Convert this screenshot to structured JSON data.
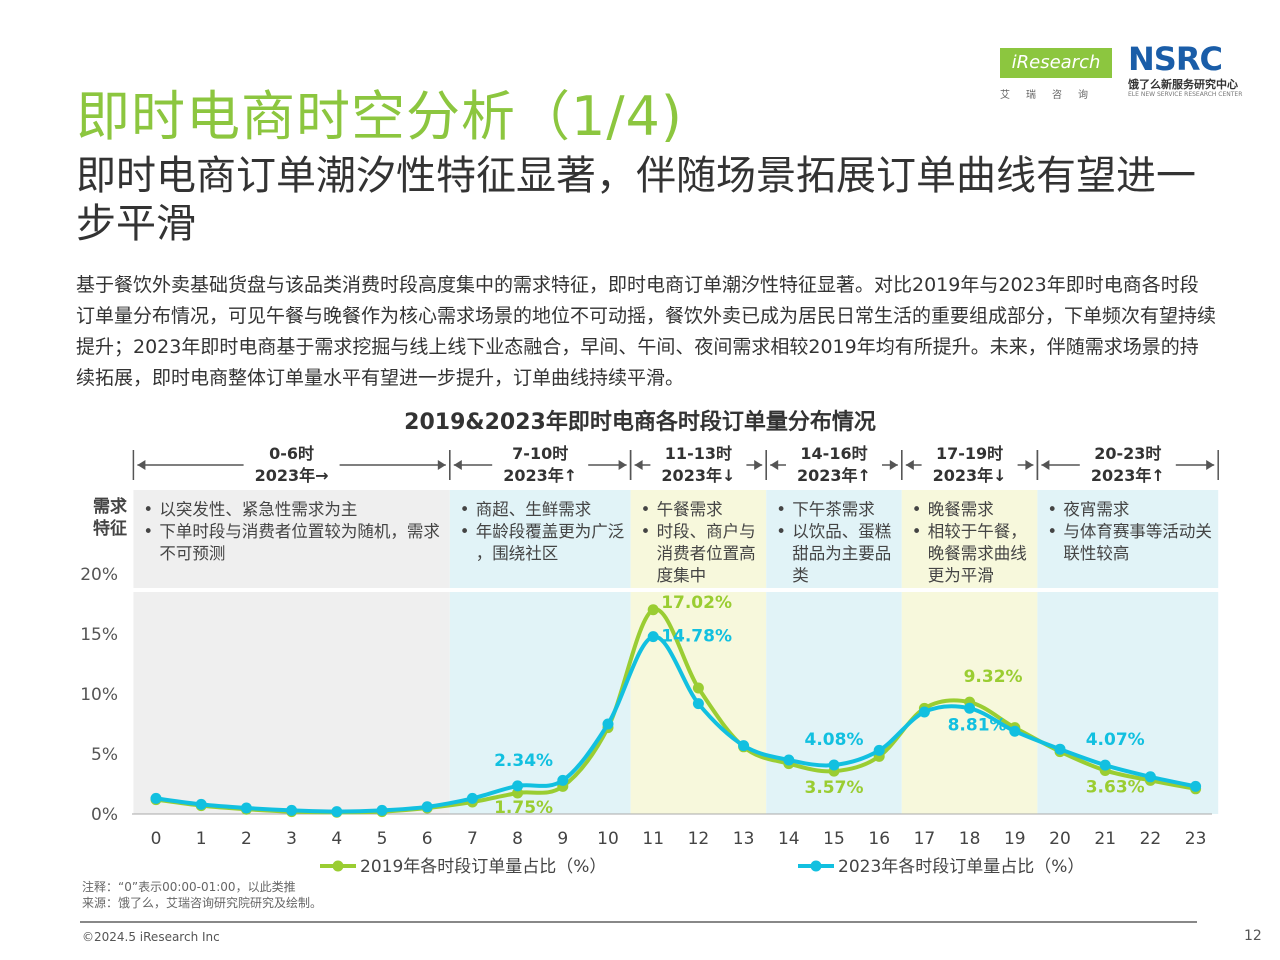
{
  "page": {
    "title": "即时电商时空分析（1/4)",
    "subtitle": "即时电商订单潮汐性特征显著，伴随场景拓展订单曲线有望进一步平滑",
    "paragraph": "基于餐饮外卖基础货盘与该品类消费时段高度集中的需求特征，即时电商订单潮汐性特征显著。对比2019年与2023年即时电商各时段订单量分布情况，可见午餐与晚餐作为核心需求场景的地位不可动摇，餐饮外卖已成为居民日常生活的重要组成部分，下单频次有望持续提升；2023年即时电商基于需求挖掘与线上线下业态融合，早间、午间、夜间需求相较2019年均有所提升。未来，伴随需求场景的持续拓展，即时电商整体订单量水平有望进一步提升，订单曲线持续平滑。",
    "footnote_1": "注释：“0”表示00:00-01:00，以此类推",
    "footnote_2": "来源：饿了么，艾瑞咨询研究院研究及绘制。",
    "copyright": "©2024.5 iResearch Inc",
    "page_number": "12"
  },
  "logos": {
    "iresearch": "iResearch",
    "iresearch_cn": "艾瑞咨询",
    "nsrc": "NSRC",
    "nsrc_cn": "饿了么新服务研究中心",
    "nsrc_en": "ELE NEW SERVICE RESEARCH CENTER"
  },
  "colors": {
    "green": "#9acd32",
    "blue": "#12c0e0",
    "title_green": "#8cc63f",
    "band_gray": "#efefef",
    "band_blue": "#e1f3f7",
    "band_yellow": "#f7f8dc"
  },
  "chart_data": {
    "type": "line",
    "title": "2019&2023年即时电商各时段订单量分布情况",
    "x": [
      0,
      1,
      2,
      3,
      4,
      5,
      6,
      7,
      8,
      9,
      10,
      11,
      12,
      13,
      14,
      15,
      16,
      17,
      18,
      19,
      20,
      21,
      22,
      23
    ],
    "ylim": [
      0,
      20
    ],
    "yticks": [
      "0%",
      "5%",
      "10%",
      "15%",
      "20%"
    ],
    "ytick_values": [
      0,
      5,
      10,
      15,
      20
    ],
    "row_label": "需求\n特征",
    "series": [
      {
        "name": "2019年各时段订单量占比（%）",
        "color": "#9acd32",
        "values": [
          1.2,
          0.7,
          0.4,
          0.2,
          0.15,
          0.2,
          0.5,
          1.0,
          1.75,
          2.3,
          7.2,
          17.02,
          10.5,
          5.6,
          4.2,
          3.57,
          4.8,
          8.8,
          9.32,
          7.2,
          5.2,
          3.63,
          2.8,
          2.1
        ]
      },
      {
        "name": "2023年各时段订单量占比（%）",
        "color": "#12c0e0",
        "values": [
          1.3,
          0.8,
          0.5,
          0.3,
          0.2,
          0.3,
          0.6,
          1.3,
          2.34,
          2.8,
          7.5,
          14.78,
          9.2,
          5.7,
          4.5,
          4.08,
          5.3,
          8.5,
          8.81,
          6.9,
          5.4,
          4.07,
          3.1,
          2.3
        ]
      }
    ],
    "data_labels": [
      {
        "text": "17.02%",
        "series": 0,
        "x": 11
      },
      {
        "text": "14.78%",
        "series": 1,
        "x": 11
      },
      {
        "text": "9.32%",
        "series": 0,
        "x": 18
      },
      {
        "text": "8.81%",
        "series": 1,
        "x": 18
      },
      {
        "text": "2.34%",
        "series": 1,
        "x": 8
      },
      {
        "text": "1.75%",
        "series": 0,
        "x": 8
      },
      {
        "text": "4.08%",
        "series": 1,
        "x": 15
      },
      {
        "text": "3.57%",
        "series": 0,
        "x": 15
      },
      {
        "text": "4.07%",
        "series": 1,
        "x": 21
      },
      {
        "text": "3.63%",
        "series": 0,
        "x": 21
      }
    ],
    "segments": [
      {
        "period": "0-6时",
        "trend": "2023年→",
        "color": "gray",
        "start": -0.5,
        "end": 6.5,
        "features": [
          "以突发性、紧急性需求为主",
          "下单时段与消费者位置较为随机，需求不可预测"
        ]
      },
      {
        "period": "7-10时",
        "trend": "2023年↑",
        "color": "blue",
        "start": 6.5,
        "end": 10.5,
        "features": [
          "商超、生鲜需求",
          "年龄段覆盖更为广泛，围绕社区"
        ]
      },
      {
        "period": "11-13时",
        "trend": "2023年↓",
        "color": "yellow",
        "start": 10.5,
        "end": 13.5,
        "features": [
          "午餐需求",
          "时段、商户与消费者位置高度集中"
        ]
      },
      {
        "period": "14-16时",
        "trend": "2023年↑",
        "color": "blue",
        "start": 13.5,
        "end": 16.5,
        "features": [
          "下午茶需求",
          "以饮品、蛋糕甜品为主要品类"
        ]
      },
      {
        "period": "17-19时",
        "trend": "2023年↓",
        "color": "yellow",
        "start": 16.5,
        "end": 19.5,
        "features": [
          "晚餐需求",
          "相较于午餐，晚餐需求曲线更为平滑"
        ]
      },
      {
        "period": "20-23时",
        "trend": "2023年↑",
        "color": "blue",
        "start": 19.5,
        "end": 23.5,
        "features": [
          "夜宵需求",
          "与体育赛事等活动关联性较高"
        ]
      }
    ]
  }
}
